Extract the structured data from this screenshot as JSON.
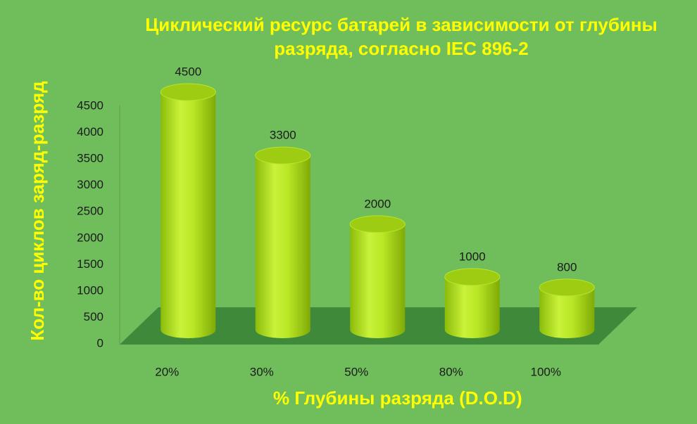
{
  "chart_data": {
    "type": "cylinder-bar",
    "title": "Циклический ресурс батарей в зависимости от глубины разряда, согласно IEC 896-2",
    "x_label": "% Глубины разряда (D.O.D)",
    "y_label": "Кол-во циклов заряд-разряд",
    "categories": [
      "20%",
      "30%",
      "50%",
      "80%",
      "100%"
    ],
    "values": [
      4500,
      3300,
      2000,
      1000,
      800
    ],
    "color": "#b4e31c",
    "ylim": [
      0,
      4500
    ],
    "yticks": [
      0,
      500,
      1000,
      1500,
      2000,
      2500,
      3000,
      3500,
      4000,
      4500
    ]
  }
}
